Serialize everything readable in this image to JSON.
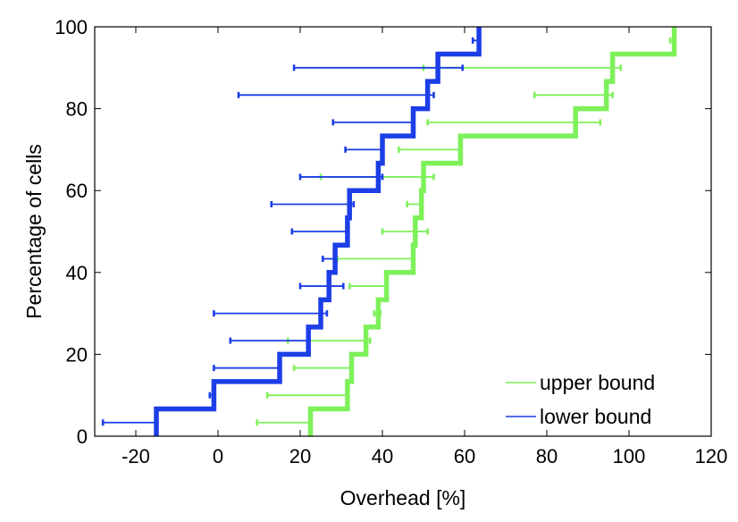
{
  "chart_data": {
    "type": "line",
    "title": "",
    "xlabel": "Overhead [%]",
    "ylabel": "Percentage of cells",
    "xlim": [
      -30,
      120
    ],
    "ylim": [
      0,
      100
    ],
    "x_ticks": [
      -20,
      0,
      20,
      40,
      60,
      80,
      100,
      120
    ],
    "y_ticks": [
      0,
      20,
      40,
      60,
      80,
      100
    ],
    "x_tick_labels": [
      "-20",
      "0",
      "20",
      "40",
      "60",
      "80",
      "100",
      "120"
    ],
    "y_tick_labels": [
      "0",
      "20",
      "40",
      "60",
      "80",
      "100"
    ],
    "grid": false,
    "legend_position": "bottom-right",
    "series": [
      {
        "name": "upper bound",
        "color": "#7ef05a",
        "steps": [
          {
            "x": 22.5,
            "lower": 9.5,
            "upper": 22.5
          },
          {
            "x": 31.5,
            "lower": 12.0,
            "upper": 31.5
          },
          {
            "x": 32.5,
            "lower": 18.5,
            "upper": 32.5
          },
          {
            "x": 36.0,
            "lower": 17.0,
            "upper": 37.0
          },
          {
            "x": 39.0,
            "lower": 38.0,
            "upper": 39.5
          },
          {
            "x": 41.0,
            "lower": 32.0,
            "upper": 41.0
          },
          {
            "x": 47.5,
            "lower": 29.0,
            "upper": 47.5
          },
          {
            "x": 48.0,
            "lower": 40.0,
            "upper": 51.0
          },
          {
            "x": 49.5,
            "lower": 46.0,
            "upper": 49.5
          },
          {
            "x": 50.0,
            "lower": 25.0,
            "upper": 52.5
          },
          {
            "x": 59.0,
            "lower": 44.0,
            "upper": 59.0
          },
          {
            "x": 87.0,
            "lower": 51.0,
            "upper": 93.0
          },
          {
            "x": 94.5,
            "lower": 77.0,
            "upper": 96.0
          },
          {
            "x": 96.0,
            "lower": 50.0,
            "upper": 98.0
          },
          {
            "x": 111.0,
            "lower": 110.0,
            "upper": 111.0
          }
        ]
      },
      {
        "name": "lower bound",
        "color": "#1c3ee6",
        "steps": [
          {
            "x": -15.0,
            "lower": -28.0,
            "upper": -15.0
          },
          {
            "x": -1.0,
            "lower": -2.0,
            "upper": -1.0
          },
          {
            "x": 15.0,
            "lower": -1.0,
            "upper": 15.0
          },
          {
            "x": 22.0,
            "lower": 3.0,
            "upper": 22.0
          },
          {
            "x": 25.0,
            "lower": -1.0,
            "upper": 26.5
          },
          {
            "x": 27.0,
            "lower": 20.0,
            "upper": 30.5
          },
          {
            "x": 28.5,
            "lower": 25.5,
            "upper": 28.5
          },
          {
            "x": 31.5,
            "lower": 18.0,
            "upper": 31.5
          },
          {
            "x": 32.0,
            "lower": 13.0,
            "upper": 33.0
          },
          {
            "x": 39.0,
            "lower": 20.0,
            "upper": 40.0
          },
          {
            "x": 40.0,
            "lower": 31.0,
            "upper": 40.0
          },
          {
            "x": 47.5,
            "lower": 28.0,
            "upper": 47.5
          },
          {
            "x": 51.0,
            "lower": 5.0,
            "upper": 52.5
          },
          {
            "x": 53.5,
            "lower": 18.5,
            "upper": 59.5
          },
          {
            "x": 63.5,
            "lower": 62.0,
            "upper": 63.5
          }
        ]
      }
    ]
  }
}
